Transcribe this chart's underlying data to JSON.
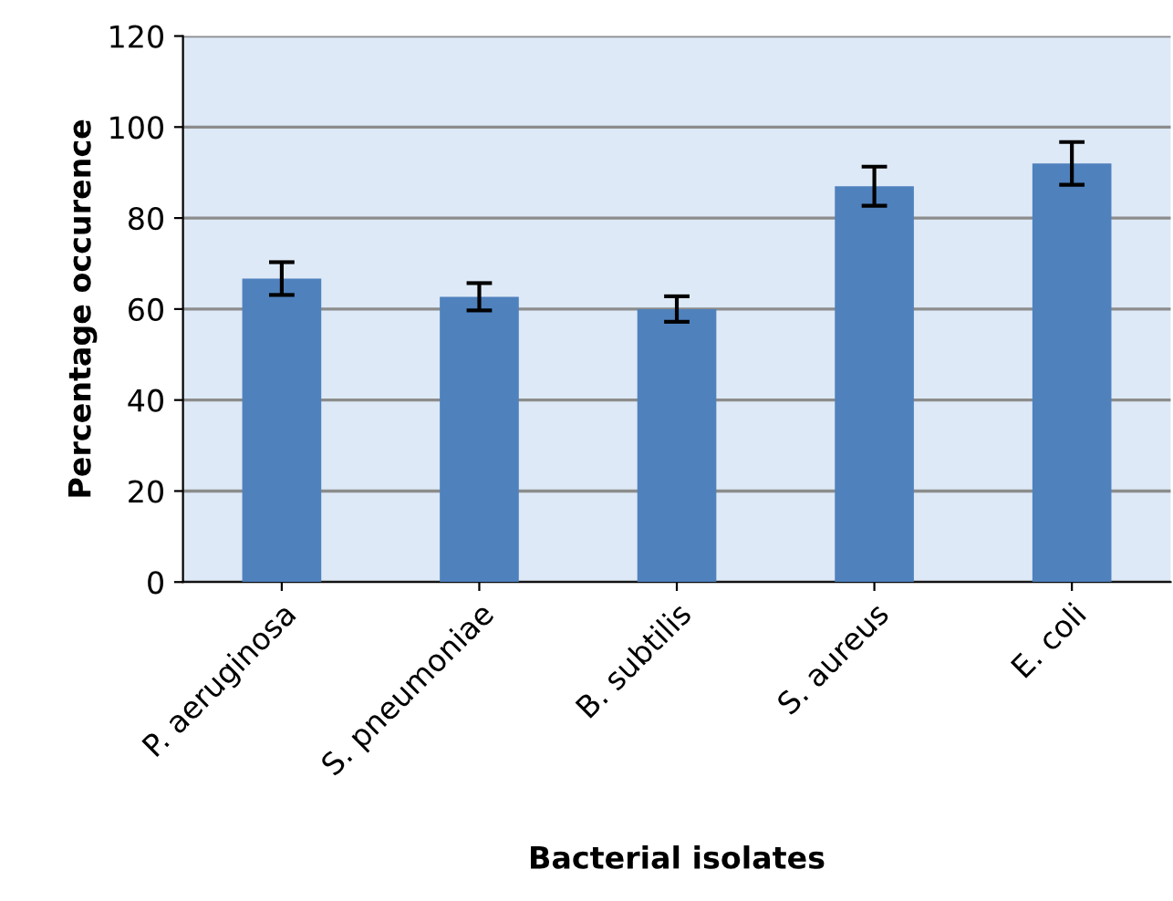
{
  "chart_data": {
    "type": "bar",
    "xlabel": "Bacterial isolates",
    "ylabel": "Percentage occurence",
    "categories": [
      "P. aeruginosa",
      "S. pneumoniae",
      "B. subtilis",
      "S. aureus",
      "E. coli"
    ],
    "values": [
      66.7,
      62.7,
      60,
      87,
      92
    ],
    "errors": [
      3.6,
      3,
      2.8,
      4.3,
      4.7
    ],
    "color": "#4f81bd",
    "ylim": [
      0,
      120
    ],
    "yticks": [
      0,
      20,
      40,
      60,
      80,
      100,
      120
    ],
    "grid": "y",
    "legend": false
  }
}
